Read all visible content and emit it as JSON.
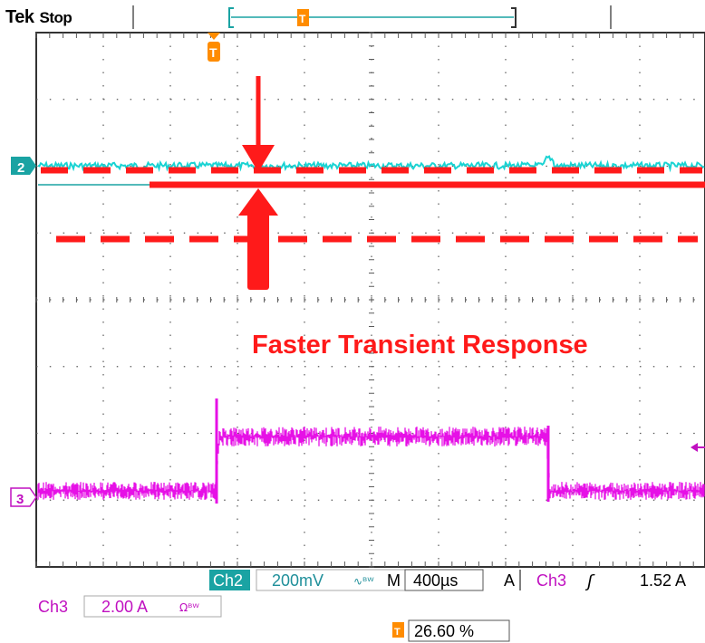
{
  "header": {
    "brand": "Tek",
    "status": "Stop"
  },
  "markers": {
    "ch2": "2",
    "ch3": "3",
    "trigger": "T"
  },
  "annotation": {
    "text": "Faster Transient Response"
  },
  "readout": {
    "ch2_label": "Ch2",
    "ch2_scale": "200mV",
    "ch2_bw": "∿ᴮᵂ",
    "timebase_prefix": "M",
    "timebase": "400µs",
    "acq_mode": "A",
    "trig_source": "Ch3",
    "trig_slope": "ʃ",
    "trig_level": "1.52 A",
    "ch3_label": "Ch3",
    "ch3_scale": "2.00 A",
    "ch3_coupling": "Ωᴮᵂ",
    "trig_pos": "26.60 %"
  },
  "colors": {
    "ch2": "#1ad3d3",
    "ch3": "#e610e6",
    "annotation": "#ff1a1a",
    "trigger": "#ff8c00",
    "grid": "#5a5a5a"
  }
}
